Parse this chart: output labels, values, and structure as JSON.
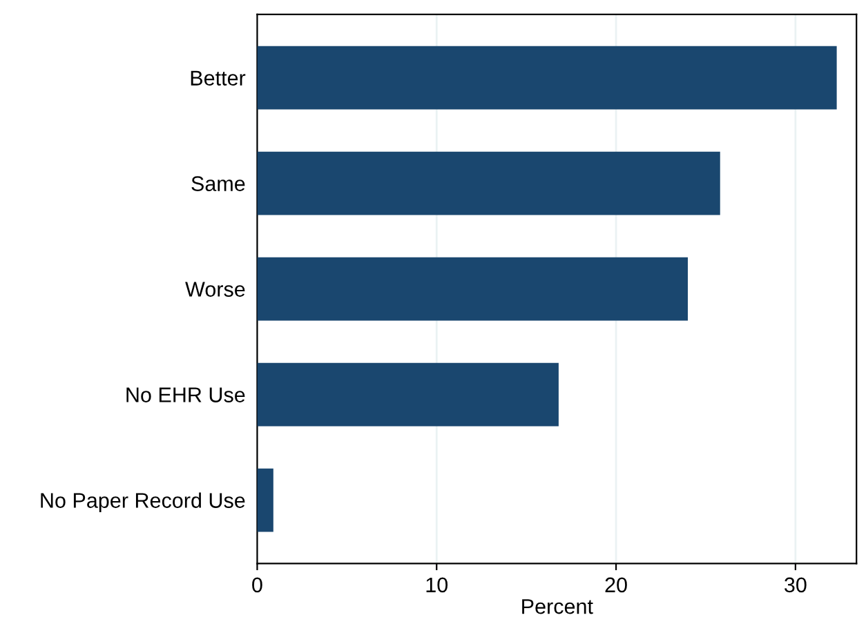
{
  "chart_data": {
    "type": "bar",
    "orientation": "horizontal",
    "categories": [
      "Better",
      "Same",
      "Worse",
      "No EHR Use",
      "No Paper Record Use"
    ],
    "values": [
      32.3,
      25.8,
      24.0,
      16.8,
      0.9
    ],
    "color": "#1a476f",
    "xlabel": "Percent",
    "xlim": [
      0,
      33.4
    ],
    "xticks": [
      0,
      10,
      20,
      30
    ],
    "grid": "x",
    "legend": false
  }
}
